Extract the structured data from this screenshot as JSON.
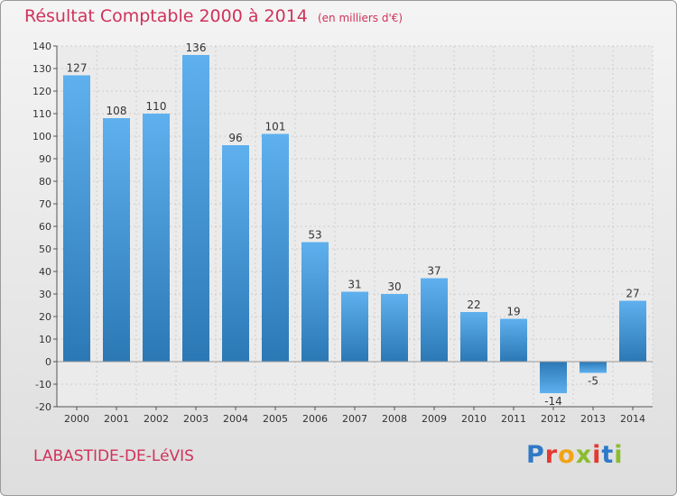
{
  "title": "Résultat Comptable 2000 à 2014",
  "subtitle": "(en milliers d'€)",
  "commune": "LABASTIDE-DE-LéVIS",
  "logo": {
    "text": "Proxiti",
    "letters": [
      {
        "ch": "P",
        "color": "#2f79c7"
      },
      {
        "ch": "r",
        "color": "#e5392f"
      },
      {
        "ch": "o",
        "color": "#f2a316"
      },
      {
        "ch": "x",
        "color": "#8bbd2f"
      },
      {
        "ch": "i",
        "color": "#e5392f"
      },
      {
        "ch": "t",
        "color": "#2f79c7"
      },
      {
        "ch": "i",
        "color": "#8bbd2f"
      }
    ]
  },
  "colors": {
    "title": "#d0325a",
    "bar_light": "#5fb0ee",
    "bar_dark": "#2b78b5",
    "grid": "#cccccc",
    "axis": "#555555"
  },
  "chart_data": {
    "type": "bar",
    "title": "Résultat Comptable 2000 à 2014",
    "xlabel": "",
    "ylabel": "en milliers d'€",
    "categories": [
      "2000",
      "2001",
      "2002",
      "2003",
      "2004",
      "2005",
      "2006",
      "2007",
      "2008",
      "2009",
      "2010",
      "2011",
      "2012",
      "2013",
      "2014"
    ],
    "values": [
      127,
      108,
      110,
      136,
      96,
      101,
      53,
      31,
      30,
      37,
      22,
      19,
      -14,
      -5,
      27
    ],
    "data_labels": [
      "127",
      "108",
      "110",
      "136",
      "96",
      "101",
      "53",
      "31",
      "30",
      "37",
      "22",
      "19",
      "-14",
      "-5",
      "27"
    ],
    "ylim": [
      -20,
      140
    ],
    "yticks": [
      -20,
      -10,
      0,
      10,
      20,
      30,
      40,
      50,
      60,
      70,
      80,
      90,
      100,
      110,
      120,
      130,
      140
    ],
    "ytick_labels": [
      "-20",
      "-10",
      "0",
      "10",
      "20",
      "30",
      "40",
      "50",
      "60",
      "70",
      "80",
      "90",
      "100",
      "110",
      "120",
      "130",
      "140"
    ],
    "grid": true
  }
}
